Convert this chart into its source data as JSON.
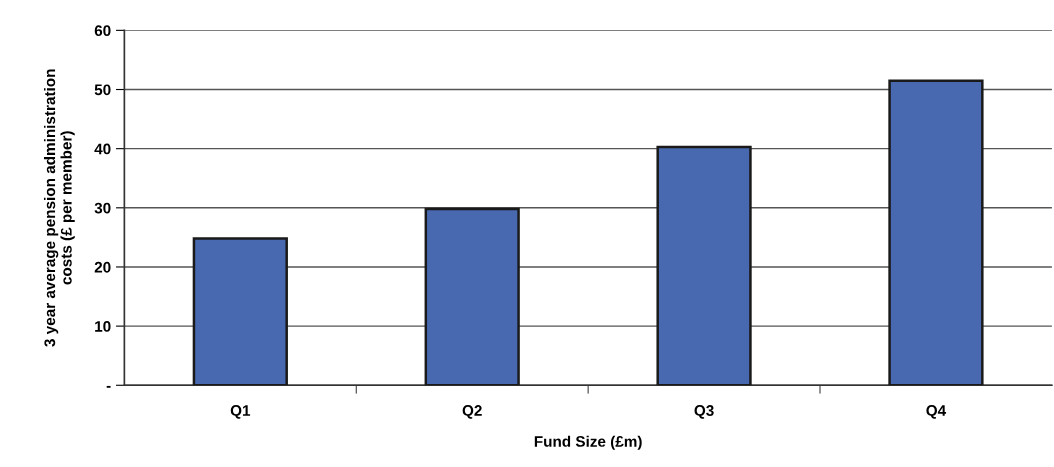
{
  "chart_data": {
    "type": "bar",
    "xlabel": "Fund Size (£m)",
    "ylabel": "3 year average pension administration\ncosts (£ per member)",
    "categories": [
      "Q1",
      "Q2",
      "Q3",
      "Q4"
    ],
    "values": [
      24.8,
      29.8,
      40.3,
      51.5
    ],
    "color": "#4868b0",
    "ylim": [
      0,
      60
    ],
    "yticks": [
      {
        "value": 0,
        "label": "-"
      },
      10,
      20,
      30,
      40,
      50,
      60
    ],
    "grid": "y"
  }
}
